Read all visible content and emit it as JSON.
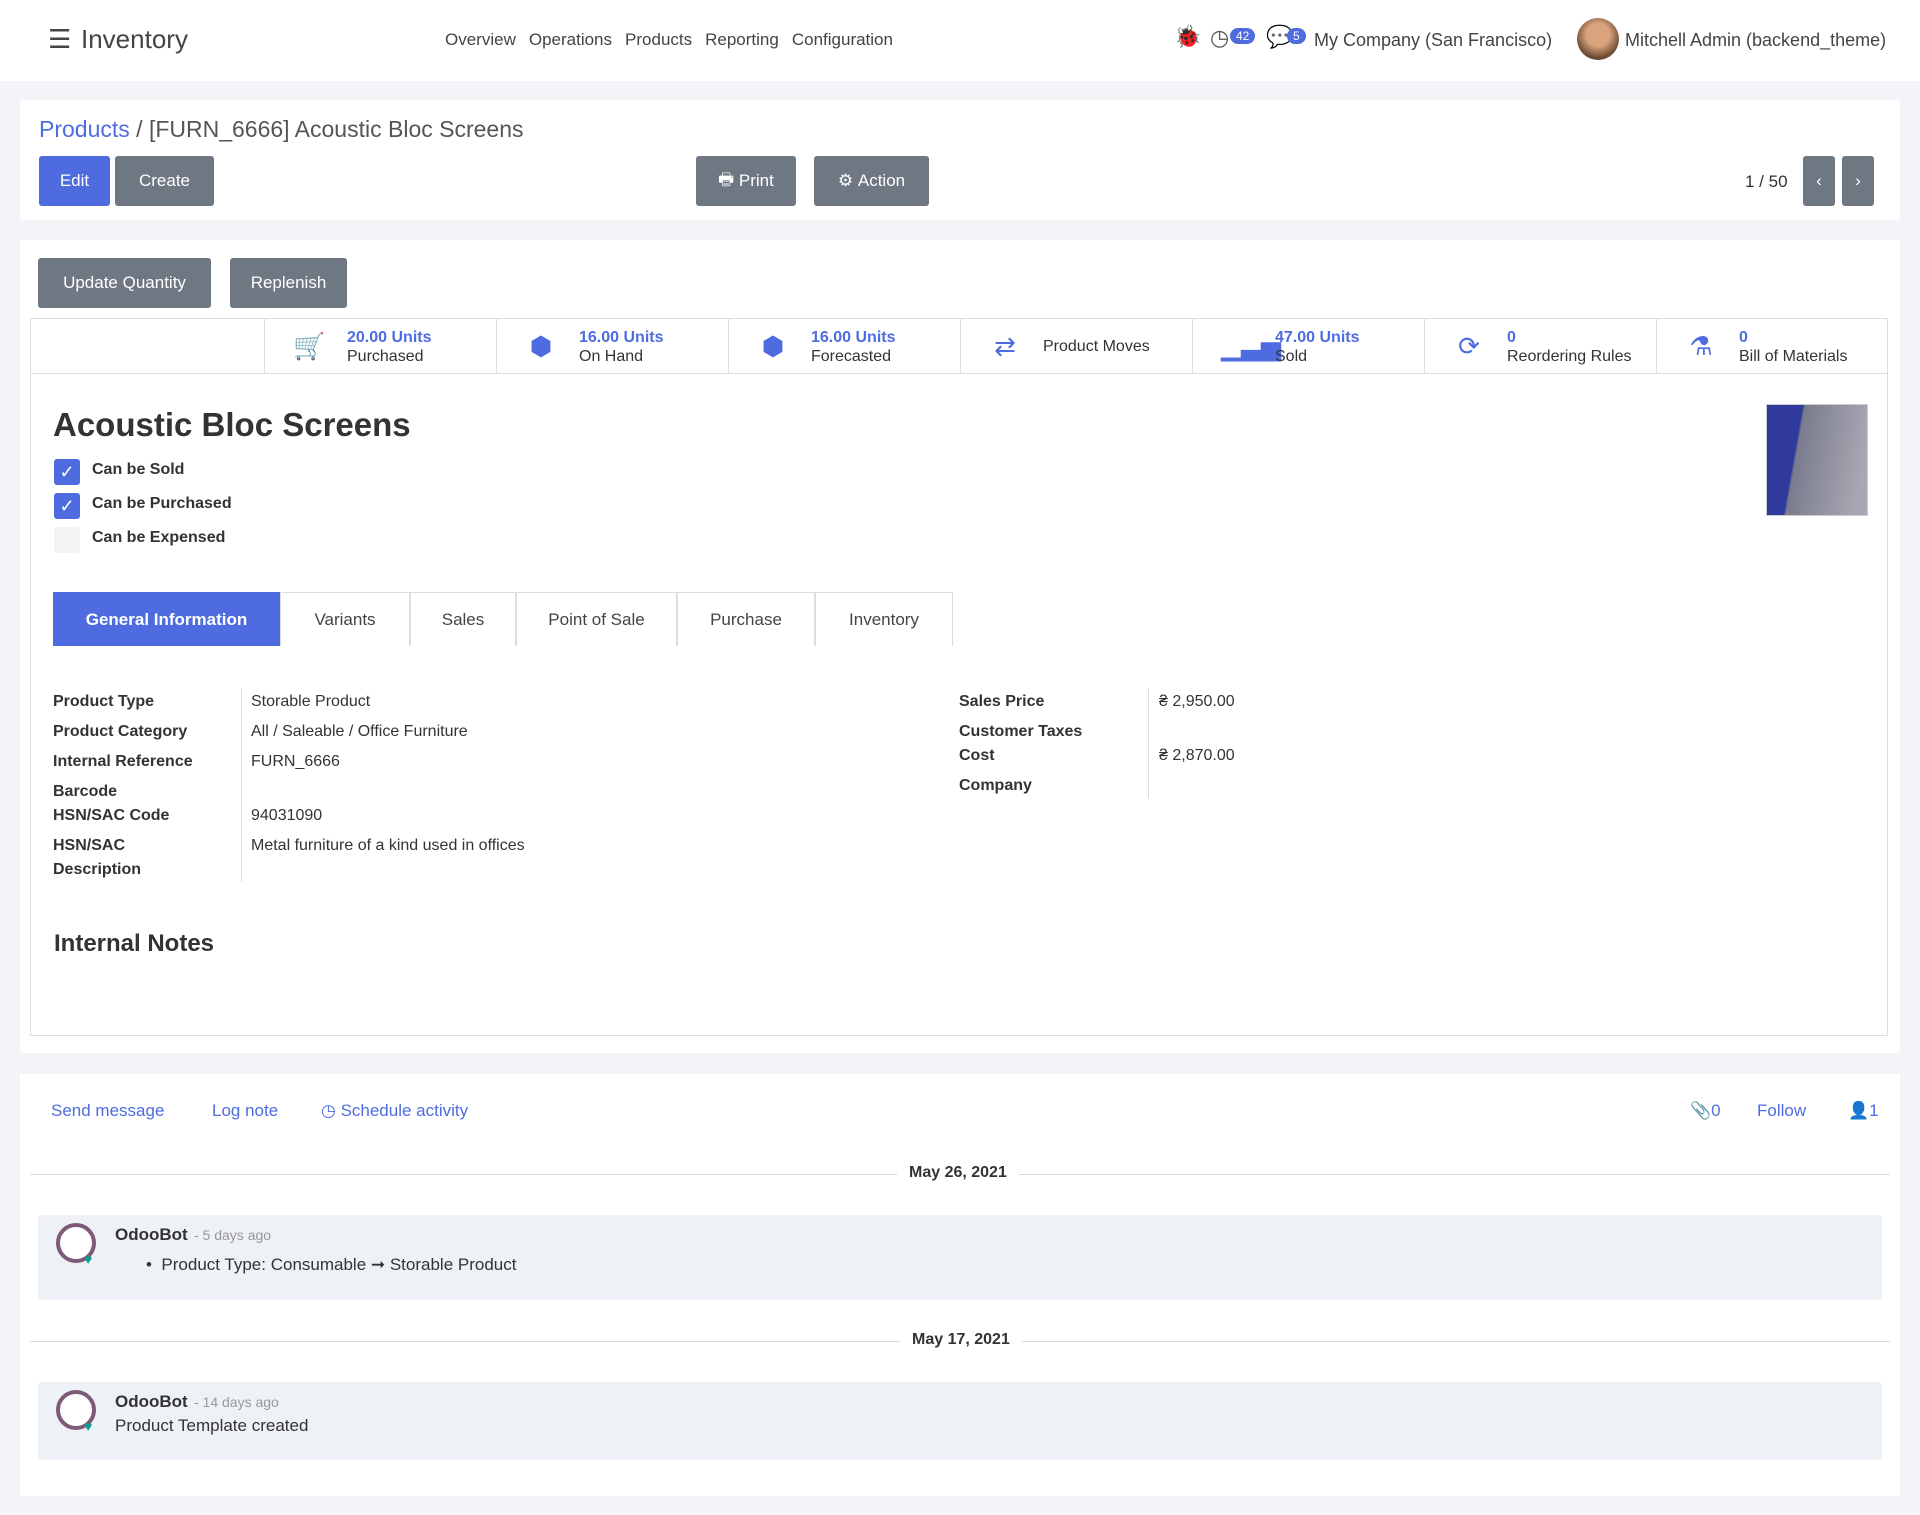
{
  "navbar": {
    "app": "Inventory",
    "menu": [
      "Overview",
      "Operations",
      "Products",
      "Reporting",
      "Configuration"
    ],
    "activity_count": "42",
    "message_count": "5",
    "company": "My Company (San Francisco)",
    "user": "Mitchell Admin (backend_theme)"
  },
  "breadcrumb": {
    "parent": "Products",
    "separator": "/",
    "current": "[FURN_6666] Acoustic Bloc Screens"
  },
  "toolbar": {
    "edit": "Edit",
    "create": "Create",
    "print": "Print",
    "action": "Action",
    "pager": "1 / 50"
  },
  "header_buttons": {
    "update_quantity": "Update Quantity",
    "replenish": "Replenish"
  },
  "stats": [
    {
      "icon": "cart-icon",
      "value": "20.00 Units",
      "label": "Purchased"
    },
    {
      "icon": "cubes-icon",
      "value": "16.00 Units",
      "label": "On Hand"
    },
    {
      "icon": "cubes-icon",
      "value": "16.00 Units",
      "label": "Forecasted"
    },
    {
      "icon": "exchange-icon",
      "value": "",
      "label": "Product Moves"
    },
    {
      "icon": "signal-icon",
      "value": "47.00 Units",
      "label": "Sold"
    },
    {
      "icon": "refresh-icon",
      "value": "0",
      "label": "Reordering Rules"
    },
    {
      "icon": "flask-icon",
      "value": "0",
      "label": "Bill of Materials"
    }
  ],
  "product": {
    "name": "Acoustic Bloc Screens",
    "checks": [
      {
        "label": "Can be Sold",
        "checked": true
      },
      {
        "label": "Can be Purchased",
        "checked": true
      },
      {
        "label": "Can be Expensed",
        "checked": false
      }
    ]
  },
  "tabs": [
    "General Information",
    "Variants",
    "Sales",
    "Point of Sale",
    "Purchase",
    "Inventory"
  ],
  "left_fields": {
    "product_type_label": "Product Type",
    "product_type": "Storable Product",
    "category_label": "Product Category",
    "category": "All / Saleable / Office Furniture",
    "ref_label": "Internal Reference",
    "ref": "FURN_6666",
    "barcode_label": "Barcode",
    "hsn_label": "HSN/SAC Code",
    "hsn": "94031090",
    "hsn_desc_label1": "HSN/SAC",
    "hsn_desc_label2": "Description",
    "hsn_desc": "Metal furniture of a kind used in offices"
  },
  "right_fields": {
    "sales_price_label": "Sales Price",
    "sales_price": "₴ 2,950.00",
    "taxes_label": "Customer Taxes",
    "cost_label": "Cost",
    "cost": "₴ 2,870.00",
    "company_label": "Company"
  },
  "internal_notes": "Internal Notes",
  "chatter": {
    "send_message": "Send message",
    "log_note": "Log note",
    "schedule_activity": "Schedule activity",
    "attachments": "0",
    "follow": "Follow",
    "followers": "1",
    "groups": [
      {
        "date": "May 26, 2021",
        "author": "OdooBot",
        "time": "- 5 days ago",
        "body": "Product Type: Consumable ➞ Storable Product"
      },
      {
        "date": "May 17, 2021",
        "author": "OdooBot",
        "time": "- 14 days ago",
        "body": "Product Template created"
      }
    ]
  },
  "colors": {
    "accent": "#4e6ce0",
    "button_secondary": "#6f7782",
    "background": "#f3f4f8"
  }
}
